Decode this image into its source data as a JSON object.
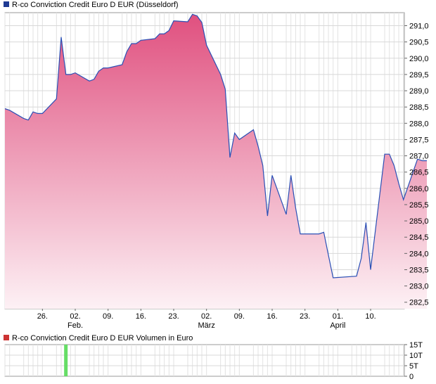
{
  "chart_data": [
    {
      "type": "area",
      "legend": "R-co Conviction Credit Euro D EUR (Düsseldorf)",
      "legend_color": "#1f3a93",
      "line_color": "#2a4fb5",
      "area_color_top": "#e0507f",
      "area_color_bottom": "#fdf1f5",
      "y_ticks": [
        "291,0",
        "290,5",
        "290,0",
        "289,5",
        "289,0",
        "288,5",
        "288,0",
        "287,5",
        "287,0",
        "286,5",
        "286,0",
        "285,5",
        "285,0",
        "284,5",
        "284,0",
        "283,5",
        "283,0",
        "282,5"
      ],
      "ylim": [
        282.3,
        291.4
      ],
      "x_tick_labels": [
        "26.",
        "02.",
        "09.",
        "16.",
        "23.",
        "02.",
        "09.",
        "16.",
        "23.",
        "01.",
        "10."
      ],
      "x_month_labels": [
        "Feb.",
        "März",
        "April"
      ],
      "grid": true,
      "series": [
        {
          "x": [
            "2024-01-18",
            "2024-01-19",
            "2024-01-22",
            "2024-01-23",
            "2024-01-24",
            "2024-01-25",
            "2024-01-26",
            "2024-01-29",
            "2024-01-30",
            "2024-01-31",
            "2024-02-01",
            "2024-02-02",
            "2024-02-05",
            "2024-02-06",
            "2024-02-07",
            "2024-02-08",
            "2024-02-09",
            "2024-02-12",
            "2024-02-13",
            "2024-02-14",
            "2024-02-15",
            "2024-02-16",
            "2024-02-19",
            "2024-02-20",
            "2024-02-21",
            "2024-02-22",
            "2024-02-23",
            "2024-02-26",
            "2024-02-27",
            "2024-02-28",
            "2024-02-29",
            "2024-03-01",
            "2024-03-04",
            "2024-03-05",
            "2024-03-06",
            "2024-03-07",
            "2024-03-08",
            "2024-03-11",
            "2024-03-12",
            "2024-03-13",
            "2024-03-14",
            "2024-03-15",
            "2024-03-18",
            "2024-03-19",
            "2024-03-20",
            "2024-03-21",
            "2024-03-22",
            "2024-03-25",
            "2024-03-26",
            "2024-03-27",
            "2024-03-28",
            "2024-04-02",
            "2024-04-03",
            "2024-04-04",
            "2024-04-05",
            "2024-04-08",
            "2024-04-09",
            "2024-04-10",
            "2024-04-11",
            "2024-04-12",
            "2024-04-15",
            "2024-04-16",
            "2024-04-17"
          ],
          "values": [
            288.45,
            288.4,
            288.15,
            288.1,
            288.35,
            288.3,
            288.3,
            288.75,
            290.65,
            289.5,
            289.5,
            289.55,
            289.3,
            289.35,
            289.6,
            289.7,
            289.7,
            289.8,
            290.2,
            290.45,
            290.45,
            290.55,
            290.6,
            290.75,
            290.75,
            290.85,
            291.15,
            291.12,
            291.35,
            291.3,
            291.1,
            290.4,
            289.5,
            289.05,
            286.95,
            287.7,
            287.5,
            287.8,
            287.3,
            286.7,
            285.15,
            286.4,
            285.2,
            286.4,
            285.4,
            284.6,
            284.6,
            284.6,
            284.65,
            283.95,
            283.25,
            283.3,
            283.85,
            284.95,
            283.5,
            287.05,
            287.05,
            286.7,
            286.15,
            285.65,
            286.9,
            286.85,
            286.85
          ]
        }
      ]
    },
    {
      "type": "bar",
      "legend": "R-co Conviction Credit Euro D EUR Volumen in Euro",
      "legend_color": "#cc3333",
      "bar_color": "#66dd66",
      "y_ticks": [
        "15T",
        "10T",
        "5T",
        "0"
      ],
      "ylim": [
        0,
        15000
      ],
      "grid": true,
      "series": [
        {
          "x": [
            "2024-01-31"
          ],
          "values": [
            15000
          ]
        }
      ]
    }
  ]
}
